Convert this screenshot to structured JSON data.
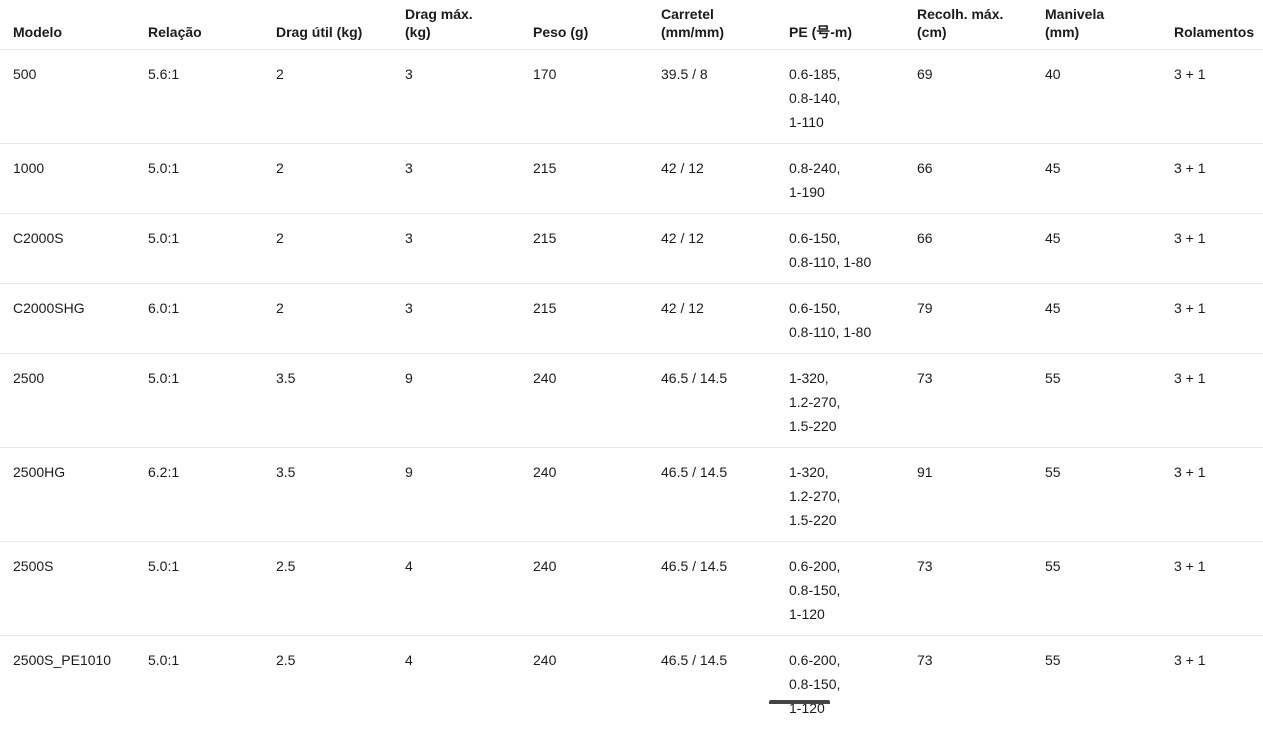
{
  "theme": {
    "background": "#ffffff",
    "text_color": "#1b1b1b",
    "divider_color": "#e8e8e8",
    "scrollbar_color": "#454545"
  },
  "table": {
    "columns": [
      {
        "key": "modelo",
        "label": "Modelo"
      },
      {
        "key": "relacao",
        "label": "Relação"
      },
      {
        "key": "drag_util",
        "label": "Drag útil (kg)"
      },
      {
        "key": "drag_max",
        "label": "Drag máx.\n(kg)"
      },
      {
        "key": "peso",
        "label": "Peso (g)"
      },
      {
        "key": "carretel",
        "label": "Carretel\n(mm/mm)"
      },
      {
        "key": "pe",
        "label": "PE (号-m)"
      },
      {
        "key": "recolh_max",
        "label": "Recolh. máx.\n(cm)"
      },
      {
        "key": "manivela",
        "label": "Manivela\n(mm)"
      },
      {
        "key": "rolamentos",
        "label": "Rolamentos"
      }
    ],
    "rows": [
      {
        "modelo": "500",
        "relacao": "5.6:1",
        "drag_util": "2",
        "drag_max": "3",
        "peso": "170",
        "carretel": "39.5 / 8",
        "pe": "0.6-185,\n0.8-140,\n1-110",
        "recolh_max": "69",
        "manivela": "40",
        "rolamentos": "3 + 1"
      },
      {
        "modelo": "1000",
        "relacao": "5.0:1",
        "drag_util": "2",
        "drag_max": "3",
        "peso": "215",
        "carretel": "42 / 12",
        "pe": "0.8-240,\n1-190",
        "recolh_max": "66",
        "manivela": "45",
        "rolamentos": "3 + 1"
      },
      {
        "modelo": "C2000S",
        "relacao": "5.0:1",
        "drag_util": "2",
        "drag_max": "3",
        "peso": "215",
        "carretel": "42 / 12",
        "pe": "0.6-150,\n0.8-110, 1-80",
        "recolh_max": "66",
        "manivela": "45",
        "rolamentos": "3 + 1"
      },
      {
        "modelo": "C2000SHG",
        "relacao": "6.0:1",
        "drag_util": "2",
        "drag_max": "3",
        "peso": "215",
        "carretel": "42 / 12",
        "pe": "0.6-150,\n0.8-110, 1-80",
        "recolh_max": "79",
        "manivela": "45",
        "rolamentos": "3 + 1"
      },
      {
        "modelo": "2500",
        "relacao": "5.0:1",
        "drag_util": "3.5",
        "drag_max": "9",
        "peso": "240",
        "carretel": "46.5 / 14.5",
        "pe": "1-320,\n1.2-270,\n1.5-220",
        "recolh_max": "73",
        "manivela": "55",
        "rolamentos": "3 + 1"
      },
      {
        "modelo": "2500HG",
        "relacao": "6.2:1",
        "drag_util": "3.5",
        "drag_max": "9",
        "peso": "240",
        "carretel": "46.5 / 14.5",
        "pe": "1-320,\n1.2-270,\n1.5-220",
        "recolh_max": "91",
        "manivela": "55",
        "rolamentos": "3 + 1"
      },
      {
        "modelo": "2500S",
        "relacao": "5.0:1",
        "drag_util": "2.5",
        "drag_max": "4",
        "peso": "240",
        "carretel": "46.5 / 14.5",
        "pe": "0.6-200,\n0.8-150,\n1-120",
        "recolh_max": "73",
        "manivela": "55",
        "rolamentos": "3 + 1"
      },
      {
        "modelo": "2500S_PE1010",
        "relacao": "5.0:1",
        "drag_util": "2.5",
        "drag_max": "4",
        "peso": "240",
        "carretel": "46.5 / 14.5",
        "pe": "0.6-200,\n0.8-150,\n1-120",
        "recolh_max": "73",
        "manivela": "55",
        "rolamentos": "3 + 1"
      }
    ]
  }
}
